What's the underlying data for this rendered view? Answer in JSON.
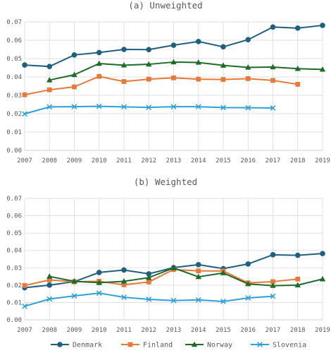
{
  "chart_data": [
    {
      "type": "line",
      "title": "(a) Unweighted",
      "x": [
        2007,
        2008,
        2009,
        2010,
        2011,
        2012,
        2013,
        2014,
        2015,
        2016,
        2017,
        2018,
        2019
      ],
      "ylim": [
        0,
        0.07
      ],
      "yticks": [
        "0.00",
        "0.01",
        "0.02",
        "0.03",
        "0.04",
        "0.05",
        "0.06",
        "0.07"
      ],
      "grid": true,
      "series": [
        {
          "name": "Denmark",
          "values": [
            0.0465,
            0.0457,
            0.052,
            0.0533,
            0.055,
            0.0549,
            0.0573,
            0.0593,
            0.0564,
            0.0603,
            0.0672,
            0.0666,
            0.0681
          ]
        },
        {
          "name": "Finland",
          "values": [
            0.0303,
            0.033,
            0.0346,
            0.0403,
            0.0375,
            0.0388,
            0.0395,
            0.0388,
            0.0386,
            0.0391,
            0.0381,
            0.036,
            null
          ]
        },
        {
          "name": "Norway",
          "values": [
            null,
            0.0383,
            0.0412,
            0.0473,
            0.0464,
            0.0469,
            0.0481,
            0.0479,
            0.0463,
            0.0452,
            0.0454,
            0.0445,
            0.0441
          ]
        },
        {
          "name": "Slovenia",
          "values": [
            0.0199,
            0.0237,
            0.0238,
            0.024,
            0.0237,
            0.0234,
            0.0238,
            0.0238,
            0.0233,
            0.0232,
            0.0231,
            null,
            null
          ]
        }
      ]
    },
    {
      "type": "line",
      "title": "(b) Weighted",
      "x": [
        2007,
        2008,
        2009,
        2010,
        2011,
        2012,
        2013,
        2014,
        2015,
        2016,
        2017,
        2018,
        2019
      ],
      "ylim": [
        0,
        0.07
      ],
      "yticks": [
        "0.00",
        "0.01",
        "0.02",
        "0.03",
        "0.04",
        "0.05",
        "0.06",
        "0.07"
      ],
      "grid": true,
      "series": [
        {
          "name": "Denmark",
          "values": [
            0.0185,
            0.02,
            0.022,
            0.0273,
            0.0287,
            0.0265,
            0.0301,
            0.0318,
            0.0295,
            0.0322,
            0.0375,
            0.0372,
            0.0382
          ]
        },
        {
          "name": "Finland",
          "values": [
            0.0198,
            0.023,
            0.022,
            0.0222,
            0.0202,
            0.0218,
            0.029,
            0.0282,
            0.0282,
            0.0213,
            0.022,
            0.0235,
            null
          ]
        },
        {
          "name": "Norway",
          "values": [
            null,
            0.025,
            0.0222,
            0.0214,
            0.0222,
            0.0243,
            0.0299,
            0.0248,
            0.027,
            0.0207,
            0.0197,
            0.02,
            0.0235
          ]
        },
        {
          "name": "Slovenia",
          "values": [
            0.0078,
            0.012,
            0.0138,
            0.0154,
            0.013,
            0.0118,
            0.0111,
            0.0115,
            0.0106,
            0.0126,
            0.0136,
            null,
            null
          ]
        }
      ]
    }
  ],
  "legend": {
    "position": "bottom",
    "items": [
      {
        "label": "Denmark",
        "color": "#1f5f7f",
        "marker": "circle"
      },
      {
        "label": "Finland",
        "color": "#e57a3b",
        "marker": "square"
      },
      {
        "label": "Norway",
        "color": "#1e6b2a",
        "marker": "triangle"
      },
      {
        "label": "Slovenia",
        "color": "#2e9fd9",
        "marker": "x"
      }
    ]
  },
  "colors": {
    "grid": "#d9d9d9",
    "axis": "#bfbfbf",
    "text": "#595959"
  }
}
